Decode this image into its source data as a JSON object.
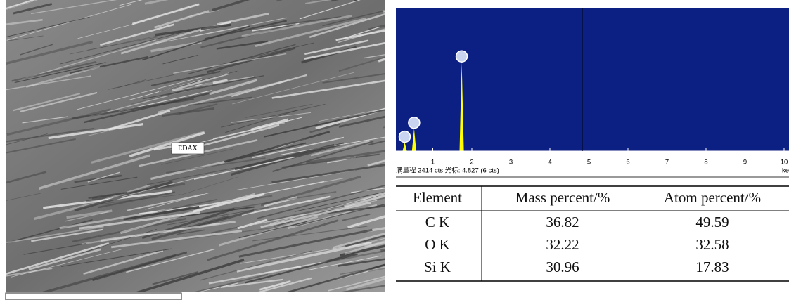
{
  "image": {
    "label": "EDAX"
  },
  "chart_data": {
    "type": "spectrum",
    "x": [
      0.28,
      0.52,
      1.74
    ],
    "values": [
      150,
      390,
      1530
    ],
    "color": "#ffff00",
    "background": "#0c1f82",
    "xlim": [
      0,
      10
    ],
    "ylim": [
      0,
      2414
    ],
    "xticks": [
      1,
      2,
      3,
      4,
      5,
      6,
      7,
      8,
      9,
      10
    ],
    "x_label": "keV",
    "cursor": 4.827,
    "status": "满量程 2414 cts 光标: 4.827 (6 cts)"
  },
  "table": {
    "header": [
      "Element",
      "Mass percent/%",
      "Atom percent/%"
    ],
    "rows": [
      [
        "C K",
        36.82,
        49.59
      ],
      [
        "O K",
        32.22,
        32.58
      ],
      [
        "Si K",
        30.96,
        17.83
      ]
    ]
  }
}
